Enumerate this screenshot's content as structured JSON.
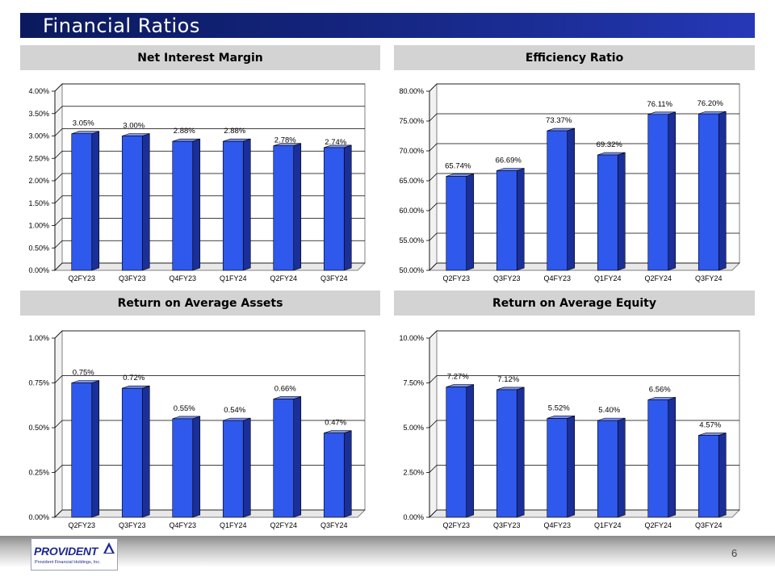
{
  "page": {
    "title": "Financial Ratios",
    "page_number": "6",
    "logo_text": "PROVIDENT",
    "logo_subtext": "Provident Financial Holdings, Inc."
  },
  "colors": {
    "bar_front": "#2f58ec",
    "bar_side": "#1a2f99",
    "bar_top": "#7d95f2",
    "title_bar": "#13237a"
  },
  "chart_data": [
    {
      "type": "bar",
      "title": "Net Interest Margin",
      "categories": [
        "Q2FY23",
        "Q3FY23",
        "Q4FY23",
        "Q1FY24",
        "Q2FY24",
        "Q3FY24"
      ],
      "values": [
        3.05,
        3.0,
        2.88,
        2.88,
        2.78,
        2.74
      ],
      "data_labels": [
        "3.05%",
        "3.00%",
        "2.88%",
        "2.88%",
        "2.78%",
        "2.74%"
      ],
      "ylim": [
        0,
        4
      ],
      "yticks": [
        0,
        0.5,
        1,
        1.5,
        2,
        2.5,
        3,
        3.5,
        4
      ],
      "ytick_labels": [
        "0.00%",
        "0.50%",
        "1.00%",
        "1.50%",
        "2.00%",
        "2.50%",
        "3.00%",
        "3.50%",
        "4.00%"
      ],
      "label_offsets": [
        0,
        0,
        0,
        0,
        6,
        6
      ],
      "xlabel": "",
      "ylabel": ""
    },
    {
      "type": "bar",
      "title": "Efficiency Ratio",
      "categories": [
        "Q2FY23",
        "Q3FY23",
        "Q4FY23",
        "Q1FY24",
        "Q2FY24",
        "Q3FY24"
      ],
      "values": [
        65.74,
        66.69,
        73.37,
        69.32,
        76.11,
        76.2
      ],
      "data_labels": [
        "65.74%",
        "66.69%",
        "73.37%",
        "69.32%",
        "76.11%",
        "76.20%"
      ],
      "ylim": [
        50,
        80
      ],
      "yticks": [
        50,
        55,
        60,
        65,
        70,
        75,
        80
      ],
      "ytick_labels": [
        "50.00%",
        "55.00%",
        "60.00%",
        "65.00%",
        "70.00%",
        "75.00%",
        "80.00%"
      ],
      "label_offsets": [
        0,
        0,
        0,
        0,
        0,
        0
      ],
      "xlabel": "",
      "ylabel": ""
    },
    {
      "type": "bar",
      "title": "Return on Average Assets",
      "categories": [
        "Q2FY23",
        "Q3FY23",
        "Q4FY23",
        "Q1FY24",
        "Q2FY24",
        "Q3FY24"
      ],
      "values": [
        0.75,
        0.72,
        0.55,
        0.54,
        0.66,
        0.47
      ],
      "data_labels": [
        "0.75%",
        "0.72%",
        "0.55%",
        "0.54%",
        "0.66%",
        "0.47%"
      ],
      "ylim": [
        0,
        1
      ],
      "yticks": [
        0,
        0.25,
        0.5,
        0.75,
        1
      ],
      "ytick_labels": [
        "0.00%",
        "0.25%",
        "0.50%",
        "0.75%",
        "1.00%"
      ],
      "label_offsets": [
        0,
        0,
        0,
        0,
        0,
        0
      ],
      "xlabel": "",
      "ylabel": ""
    },
    {
      "type": "bar",
      "title": "Return on Average Equity",
      "categories": [
        "Q2FY23",
        "Q3FY23",
        "Q4FY23",
        "Q1FY24",
        "Q2FY24",
        "Q3FY24"
      ],
      "values": [
        7.27,
        7.12,
        5.52,
        5.4,
        6.56,
        4.57
      ],
      "data_labels": [
        "7.27%",
        "7.12%",
        "5.52%",
        "5.40%",
        "6.56%",
        "4.57%"
      ],
      "ylim": [
        0,
        10
      ],
      "yticks": [
        0,
        2.5,
        5,
        7.5,
        10
      ],
      "ytick_labels": [
        "0.00%",
        "2.50%",
        "5.00%",
        "7.50%",
        "10.00%"
      ],
      "label_offsets": [
        0,
        0,
        0,
        0,
        0,
        0
      ],
      "xlabel": "",
      "ylabel": ""
    }
  ]
}
